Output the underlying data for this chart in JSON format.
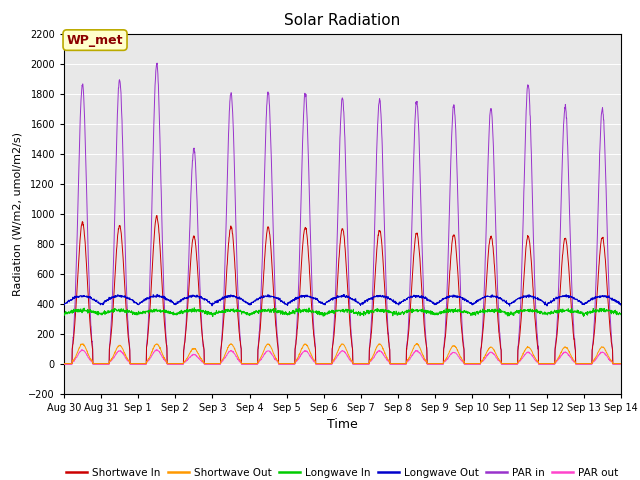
{
  "title": "Solar Radiation",
  "xlabel": "Time",
  "ylabel": "Radiation (W/m2, umol/m2/s)",
  "ylim": [
    -200,
    2200
  ],
  "yticks": [
    -200,
    0,
    200,
    400,
    600,
    800,
    1000,
    1200,
    1400,
    1600,
    1800,
    2000,
    2200
  ],
  "background_color": "#e8e8e8",
  "legend_items": [
    {
      "label": "Shortwave In",
      "color": "#cc0000"
    },
    {
      "label": "Shortwave Out",
      "color": "#ff9900"
    },
    {
      "label": "Longwave In",
      "color": "#00cc00"
    },
    {
      "label": "Longwave Out",
      "color": "#0000cc"
    },
    {
      "label": "PAR in",
      "color": "#9933cc"
    },
    {
      "label": "PAR out",
      "color": "#ff44cc"
    }
  ],
  "annotation": "WP_met",
  "n_days": 15,
  "points_per_day": 144,
  "sw_in_peaks": [
    940,
    920,
    980,
    850,
    910,
    910,
    910,
    900,
    890,
    870,
    860,
    850,
    850,
    840,
    840
  ],
  "sw_out_peaks": [
    130,
    120,
    130,
    100,
    130,
    130,
    130,
    130,
    130,
    130,
    120,
    110,
    110,
    110,
    110
  ],
  "par_in_peaks": [
    1860,
    1890,
    2000,
    1430,
    1810,
    1810,
    1800,
    1770,
    1760,
    1750,
    1720,
    1700,
    1870,
    1710,
    1700
  ],
  "par_out_peaks": [
    90,
    85,
    90,
    60,
    85,
    85,
    85,
    85,
    85,
    85,
    75,
    75,
    75,
    75,
    75
  ],
  "lw_in_base": 330,
  "lw_out_base": 395,
  "tick_labels": [
    "Aug 30",
    "Aug 31",
    "Sep 1",
    "Sep 2",
    "Sep 3",
    "Sep 4",
    "Sep 5",
    "Sep 6",
    "Sep 7",
    "Sep 8",
    "Sep 9",
    "Sep 10",
    "Sep 11",
    "Sep 12",
    "Sep 13",
    "Sep 14"
  ]
}
